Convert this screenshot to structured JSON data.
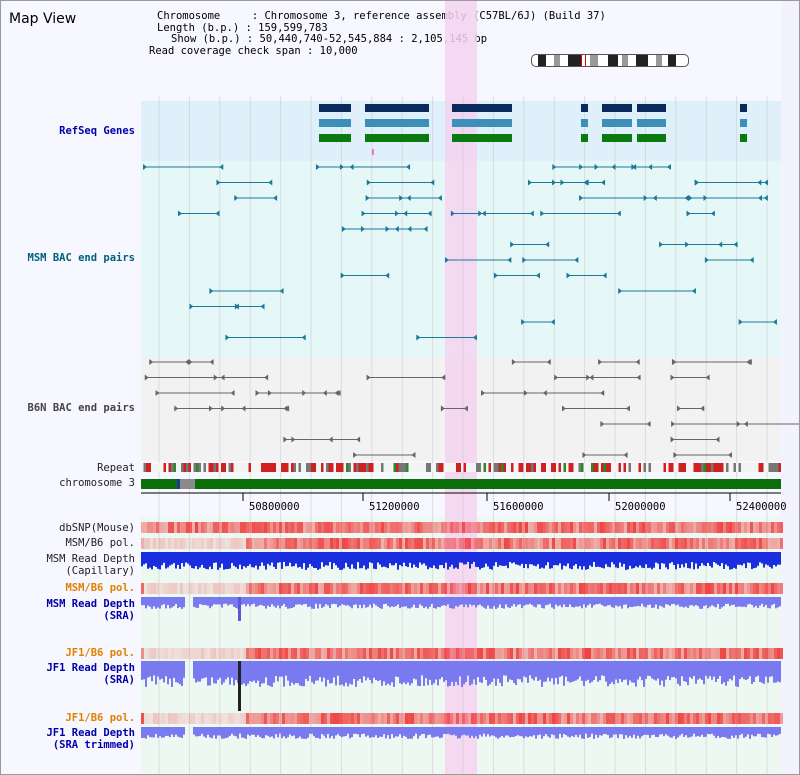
{
  "header": {
    "title": "Map View",
    "chromosome_line": "Chromosome     : Chromosome 3, reference assembly (C57BL/6J) (Build 37)",
    "length_line": "Length (b.p.) : 159,599,783",
    "show_line": "Show (b.p.) : 50,440,740-52,545,884 : 2,105,145 bp",
    "read_line": "Read coverage check span : 10,000"
  },
  "tracks": {
    "refseq": "RefSeq Genes",
    "msm_bac": "MSM BAC end pairs",
    "b6n_bac": "B6N BAC end pairs",
    "repeat": "Repeat",
    "chrom": "chromosome 3",
    "dbsnp": "dbSNP(Mouse)",
    "msm_b6_pol_1": "MSM/B6 pol.",
    "msm_read_cap_1": "MSM Read Depth",
    "msm_read_cap_2": "(Capillary)",
    "msm_b6_pol_2": "MSM/B6 pol.",
    "msm_read_sra_1": "MSM Read Depth",
    "msm_read_sra_2": "(SRA)",
    "jf1_b6_pol_1": "JF1/B6 pol.",
    "jf1_read_sra_1": "JF1 Read Depth",
    "jf1_read_sra_2": "(SRA)",
    "jf1_b6_pol_2": "JF1/B6 pol.",
    "jf1_read_trim_1": "JF1 Read Depth",
    "jf1_read_trim_2": "(SRA trimmed)"
  },
  "axis": [
    "50800000",
    "51200000",
    "51600000",
    "52000000",
    "52400000"
  ],
  "colors": {
    "refseq_bg": "#dff0fb",
    "msm_bg": "#e6f7f7",
    "b6n_bg": "#f2f2f2",
    "highlight": "#f5d4f0",
    "gene_navy": "#0b2a5c",
    "gene_teal": "#3c8fb8",
    "gene_green": "#0a7a10",
    "label_blue": "#0000aa",
    "label_teal": "#006080",
    "label_orange": "#e08000",
    "chrom_green": "#0a6e0a"
  }
}
